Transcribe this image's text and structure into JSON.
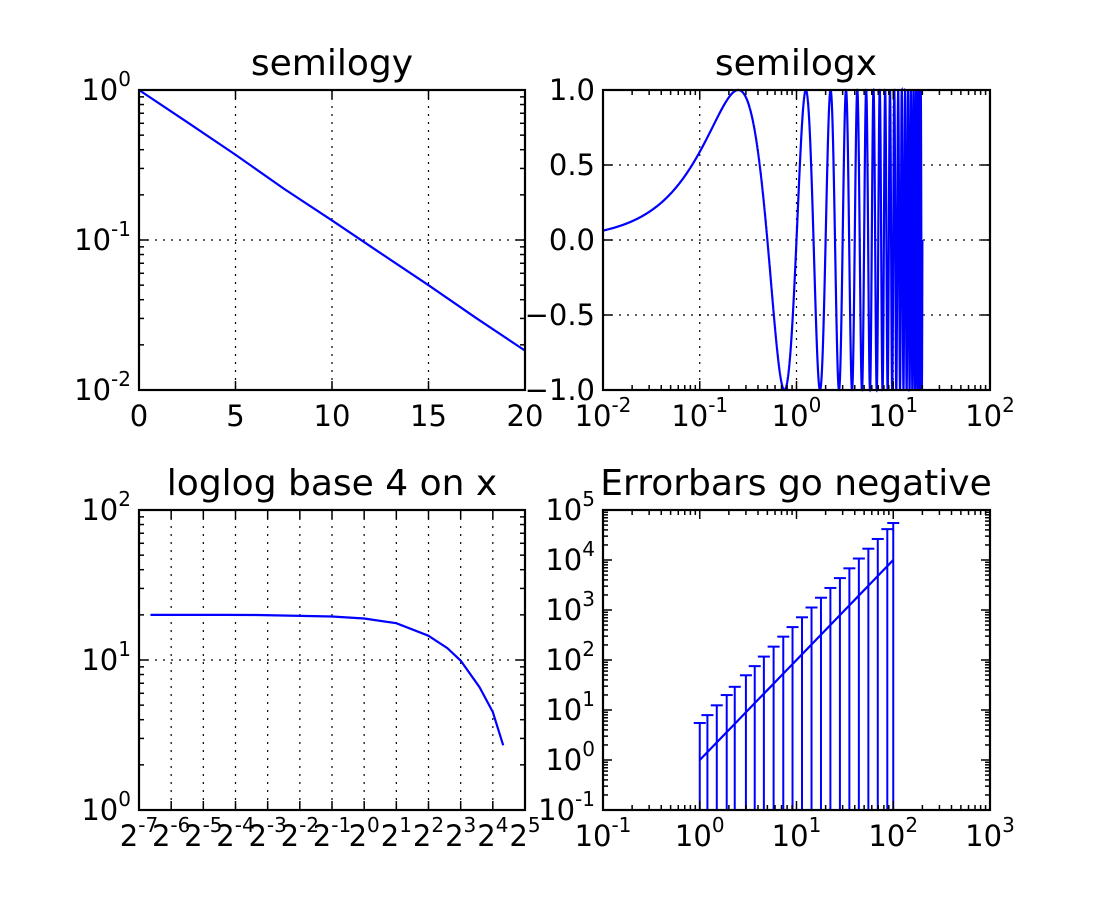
{
  "colors": {
    "line": "#0000ff",
    "axes": "#000000",
    "background": "#ffffff"
  },
  "chart_data": [
    {
      "type": "line",
      "title": "semilogy",
      "xscale": "linear",
      "yscale": "log",
      "xlim": [
        0,
        20
      ],
      "ylim": [
        0.01,
        1
      ],
      "grid": true,
      "x_ticks": [
        0,
        5,
        10,
        15,
        20
      ],
      "y_ticks": [
        0.01,
        0.1,
        1
      ],
      "x_tick_labels": [
        "0",
        "5",
        "10",
        "15",
        "20"
      ],
      "y_tick_labels": [
        {
          "base": "10",
          "exp": "-2"
        },
        {
          "base": "10",
          "exp": "-1"
        },
        {
          "base": "10",
          "exp": "0"
        }
      ],
      "series": [
        {
          "x": [
            0,
            2.5,
            5,
            7.5,
            10,
            12.5,
            15,
            17.5,
            20
          ],
          "y": [
            1.0,
            0.61,
            0.37,
            0.22,
            0.135,
            0.082,
            0.05,
            0.03,
            0.0183
          ]
        }
      ]
    },
    {
      "type": "line",
      "title": "semilogx",
      "xscale": "log",
      "yscale": "linear",
      "xlim": [
        0.01,
        100
      ],
      "ylim": [
        -1.0,
        1.0
      ],
      "grid": true,
      "x_ticks": [
        0.01,
        0.1,
        1,
        10,
        100
      ],
      "y_ticks": [
        -1.0,
        -0.5,
        0.0,
        0.5,
        1.0
      ],
      "x_tick_labels": [
        {
          "base": "10",
          "exp": "-2"
        },
        {
          "base": "10",
          "exp": "-1"
        },
        {
          "base": "10",
          "exp": "0"
        },
        {
          "base": "10",
          "exp": "1"
        },
        {
          "base": "10",
          "exp": "2"
        }
      ],
      "y_tick_labels": [
        "−1.0",
        "−0.5",
        "0.0",
        "0.5",
        "1.0"
      ],
      "x_range": [
        0.01,
        20
      ],
      "function": "sin(2*pi*x)",
      "series": [
        {
          "x_start": 0.01,
          "x_end": 20,
          "description_points": [
            [
              0.01,
              0.06
            ],
            [
              0.25,
              1.0
            ],
            [
              0.75,
              -1.0
            ]
          ]
        }
      ]
    },
    {
      "type": "line",
      "title": "loglog base 4 on x",
      "xscale": "log",
      "xbase": 4,
      "yscale": "log",
      "xlim": [
        0.0078125,
        32
      ],
      "ylim": [
        1,
        100
      ],
      "grid": true,
      "x_ticks": [
        0.0078125,
        0.015625,
        0.03125,
        0.0625,
        0.125,
        0.25,
        0.5,
        1,
        2,
        4,
        8,
        16,
        32
      ],
      "y_ticks": [
        1,
        10,
        100
      ],
      "x_tick_labels": [
        {
          "base": "2",
          "exp": "-7"
        },
        {
          "base": "2",
          "exp": "-6"
        },
        {
          "base": "2",
          "exp": "-5"
        },
        {
          "base": "2",
          "exp": "-4"
        },
        {
          "base": "2",
          "exp": "-3"
        },
        {
          "base": "2",
          "exp": "-2"
        },
        {
          "base": "2",
          "exp": "-1"
        },
        {
          "base": "2",
          "exp": "0"
        },
        {
          "base": "2",
          "exp": "1"
        },
        {
          "base": "2",
          "exp": "2"
        },
        {
          "base": "2",
          "exp": "3"
        },
        {
          "base": "2",
          "exp": "4"
        },
        {
          "base": "2",
          "exp": "5"
        }
      ],
      "y_tick_labels": [
        {
          "base": "10",
          "exp": "0"
        },
        {
          "base": "10",
          "exp": "1"
        },
        {
          "base": "10",
          "exp": "2"
        }
      ],
      "series": [
        {
          "x": [
            0.01,
            0.05,
            0.1,
            0.5,
            1,
            2,
            4,
            6,
            8,
            12,
            16,
            20
          ],
          "y": [
            20.0,
            19.98,
            19.95,
            19.5,
            18.9,
            17.6,
            14.5,
            12.0,
            9.9,
            6.6,
            4.5,
            2.7
          ]
        }
      ]
    },
    {
      "type": "scatter",
      "title": "Errorbars go negative",
      "xscale": "log",
      "yscale": "log",
      "xlim": [
        0.1,
        1000
      ],
      "ylim": [
        0.1,
        100000
      ],
      "grid": false,
      "x_ticks": [
        0.1,
        1,
        10,
        100,
        1000
      ],
      "y_ticks": [
        0.1,
        1,
        10,
        100,
        1000,
        10000,
        100000
      ],
      "x_tick_labels": [
        {
          "base": "10",
          "exp": "-1"
        },
        {
          "base": "10",
          "exp": "0"
        },
        {
          "base": "10",
          "exp": "1"
        },
        {
          "base": "10",
          "exp": "2"
        },
        {
          "base": "10",
          "exp": "3"
        }
      ],
      "y_tick_labels": [
        {
          "base": "10",
          "exp": "-1"
        },
        {
          "base": "10",
          "exp": "0"
        },
        {
          "base": "10",
          "exp": "1"
        },
        {
          "base": "10",
          "exp": "2"
        },
        {
          "base": "10",
          "exp": "3"
        },
        {
          "base": "10",
          "exp": "4"
        },
        {
          "base": "10",
          "exp": "5"
        }
      ],
      "series": [
        {
          "x": [
            1,
            1.2,
            1.5,
            1.9,
            2.3,
            3,
            3.7,
            4.6,
            5.8,
            7.3,
            9.1,
            11.4,
            14.3,
            17.9,
            22.4,
            28.1,
            35.2,
            44.1,
            55.3,
            69.2,
            86.8,
            100
          ],
          "y": [
            1.0,
            1.44,
            2.25,
            3.61,
            5.29,
            9.0,
            13.7,
            21.2,
            33.6,
            53.3,
            82.8,
            130,
            204,
            320,
            502,
            790,
            1239,
            1945,
            3058,
            4789,
            7534,
            10000
          ],
          "yerr_upper": [
            5.5,
            7.9,
            12.4,
            19.9,
            29.1,
            49.5,
            75.4,
            117,
            185,
            293,
            455,
            715,
            1122,
            1760,
            2761,
            4345,
            6815,
            10698,
            16819,
            26340,
            41437,
            55000
          ],
          "yerr_lower_goes_negative": true
        }
      ]
    }
  ]
}
